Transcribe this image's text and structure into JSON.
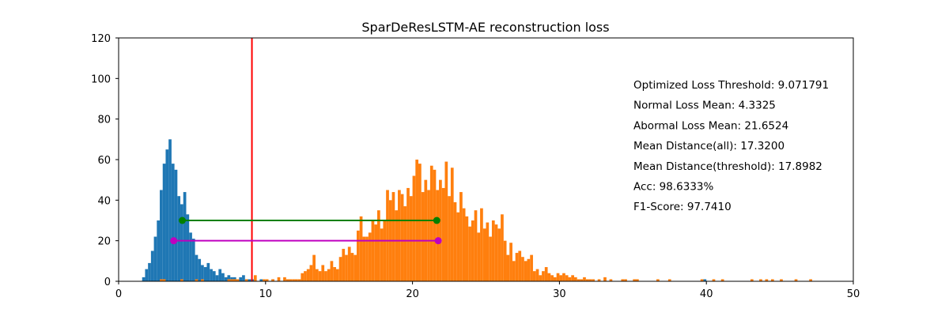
{
  "chart_data": {
    "type": "histogram",
    "title": "SparDeResLSTM-AE reconstruction loss",
    "xlabel": "",
    "ylabel": "",
    "xlim": [
      0,
      50
    ],
    "ylim": [
      0,
      120
    ],
    "x_ticks": [
      0,
      10,
      20,
      30,
      40,
      50
    ],
    "y_ticks": [
      0,
      20,
      40,
      60,
      80,
      100,
      120
    ],
    "grid": false,
    "bin_width": 0.2,
    "series": [
      {
        "color": "#1f77b4",
        "bins": [
          [
            1.6,
            2
          ],
          [
            1.8,
            6
          ],
          [
            2.0,
            9
          ],
          [
            2.2,
            15
          ],
          [
            2.4,
            22
          ],
          [
            2.6,
            30
          ],
          [
            2.8,
            45
          ],
          [
            3.0,
            58
          ],
          [
            3.2,
            65
          ],
          [
            3.4,
            70
          ],
          [
            3.6,
            58
          ],
          [
            3.8,
            55
          ],
          [
            4.0,
            42
          ],
          [
            4.2,
            38
          ],
          [
            4.4,
            44
          ],
          [
            4.6,
            33
          ],
          [
            4.8,
            24
          ],
          [
            5.0,
            21
          ],
          [
            5.2,
            13
          ],
          [
            5.4,
            11
          ],
          [
            5.6,
            8
          ],
          [
            5.8,
            7
          ],
          [
            6.0,
            9
          ],
          [
            6.2,
            6
          ],
          [
            6.4,
            5
          ],
          [
            6.6,
            3
          ],
          [
            6.8,
            6
          ],
          [
            7.0,
            4
          ],
          [
            7.2,
            2
          ],
          [
            7.4,
            3
          ],
          [
            7.6,
            2
          ],
          [
            7.8,
            2
          ],
          [
            8.0,
            1
          ],
          [
            8.2,
            2
          ],
          [
            8.4,
            3
          ],
          [
            8.6,
            1
          ],
          [
            8.8,
            1
          ],
          [
            9.0,
            1
          ],
          [
            9.6,
            1
          ],
          [
            10.4,
            1
          ],
          [
            39.8,
            1
          ]
        ]
      },
      {
        "color": "#ff7f0e",
        "bins": [
          [
            2.8,
            1
          ],
          [
            3.0,
            1
          ],
          [
            4.2,
            1
          ],
          [
            5.2,
            1
          ],
          [
            5.6,
            1
          ],
          [
            7.4,
            1
          ],
          [
            7.6,
            1
          ],
          [
            7.8,
            1
          ],
          [
            8.0,
            1
          ],
          [
            8.6,
            1
          ],
          [
            9.2,
            3
          ],
          [
            9.8,
            1
          ],
          [
            10.0,
            1
          ],
          [
            10.4,
            1
          ],
          [
            10.8,
            2
          ],
          [
            11.2,
            2
          ],
          [
            11.4,
            1
          ],
          [
            11.6,
            1
          ],
          [
            11.8,
            1
          ],
          [
            12.0,
            1
          ],
          [
            12.2,
            1
          ],
          [
            12.4,
            4
          ],
          [
            12.6,
            5
          ],
          [
            12.8,
            6
          ],
          [
            13.0,
            8
          ],
          [
            13.2,
            13
          ],
          [
            13.4,
            6
          ],
          [
            13.6,
            5
          ],
          [
            13.8,
            8
          ],
          [
            14.0,
            5
          ],
          [
            14.2,
            6
          ],
          [
            14.4,
            10
          ],
          [
            14.6,
            7
          ],
          [
            14.8,
            6
          ],
          [
            15.0,
            12
          ],
          [
            15.2,
            16
          ],
          [
            15.4,
            13
          ],
          [
            15.6,
            17
          ],
          [
            15.8,
            14
          ],
          [
            16.0,
            13
          ],
          [
            16.2,
            25
          ],
          [
            16.4,
            32
          ],
          [
            16.6,
            22
          ],
          [
            16.8,
            22
          ],
          [
            17.0,
            24
          ],
          [
            17.2,
            30
          ],
          [
            17.4,
            28
          ],
          [
            17.6,
            35
          ],
          [
            17.8,
            26
          ],
          [
            18.0,
            30
          ],
          [
            18.2,
            45
          ],
          [
            18.4,
            40
          ],
          [
            18.6,
            44
          ],
          [
            18.8,
            35
          ],
          [
            19.0,
            45
          ],
          [
            19.2,
            43
          ],
          [
            19.4,
            37
          ],
          [
            19.6,
            46
          ],
          [
            19.8,
            42
          ],
          [
            20.0,
            52
          ],
          [
            20.2,
            60
          ],
          [
            20.4,
            58
          ],
          [
            20.6,
            44
          ],
          [
            20.8,
            50
          ],
          [
            21.0,
            45
          ],
          [
            21.2,
            57
          ],
          [
            21.4,
            55
          ],
          [
            21.6,
            45
          ],
          [
            21.8,
            50
          ],
          [
            22.0,
            46
          ],
          [
            22.2,
            59
          ],
          [
            22.4,
            42
          ],
          [
            22.6,
            56
          ],
          [
            22.8,
            39
          ],
          [
            23.0,
            34
          ],
          [
            23.2,
            44
          ],
          [
            23.4,
            36
          ],
          [
            23.6,
            32
          ],
          [
            23.8,
            27
          ],
          [
            24.0,
            30
          ],
          [
            24.2,
            35
          ],
          [
            24.4,
            24
          ],
          [
            24.6,
            36
          ],
          [
            24.8,
            26
          ],
          [
            25.0,
            29
          ],
          [
            25.2,
            22
          ],
          [
            25.4,
            30
          ],
          [
            25.6,
            28
          ],
          [
            25.8,
            26
          ],
          [
            26.0,
            33
          ],
          [
            26.2,
            20
          ],
          [
            26.4,
            13
          ],
          [
            26.6,
            19
          ],
          [
            26.8,
            10
          ],
          [
            27.0,
            14
          ],
          [
            27.2,
            15
          ],
          [
            27.4,
            12
          ],
          [
            27.6,
            10
          ],
          [
            27.8,
            11
          ],
          [
            28.0,
            13
          ],
          [
            28.2,
            5
          ],
          [
            28.4,
            6
          ],
          [
            28.6,
            3
          ],
          [
            28.8,
            5
          ],
          [
            29.0,
            7
          ],
          [
            29.2,
            4
          ],
          [
            29.4,
            3
          ],
          [
            29.6,
            2
          ],
          [
            29.8,
            4
          ],
          [
            30.0,
            3
          ],
          [
            30.2,
            4
          ],
          [
            30.4,
            3
          ],
          [
            30.6,
            2
          ],
          [
            30.8,
            3
          ],
          [
            31.0,
            2
          ],
          [
            31.2,
            1
          ],
          [
            31.4,
            1
          ],
          [
            31.6,
            2
          ],
          [
            31.8,
            1
          ],
          [
            32.0,
            1
          ],
          [
            32.2,
            1
          ],
          [
            32.6,
            1
          ],
          [
            33.0,
            2
          ],
          [
            33.4,
            1
          ],
          [
            34.2,
            1
          ],
          [
            34.4,
            1
          ],
          [
            35.0,
            1
          ],
          [
            35.2,
            1
          ],
          [
            36.6,
            1
          ],
          [
            37.4,
            1
          ],
          [
            39.6,
            1
          ],
          [
            40.4,
            1
          ],
          [
            41.0,
            1
          ],
          [
            43.0,
            1
          ],
          [
            43.6,
            1
          ],
          [
            44.0,
            1
          ],
          [
            44.4,
            1
          ],
          [
            45.0,
            1
          ],
          [
            46.0,
            1
          ],
          [
            47.0,
            1
          ]
        ]
      }
    ],
    "threshold_line": {
      "x": 9.071791,
      "color": "#ff0000"
    },
    "distance_markers": [
      {
        "x1": 4.3325,
        "x2": 21.6524,
        "y": 30,
        "color": "#008000"
      },
      {
        "x1": 3.75,
        "x2": 21.75,
        "y": 20,
        "color": "#bf00bf"
      }
    ],
    "annotations": [
      "Optimized Loss Threshold: 9.071791",
      "Normal Loss Mean: 4.3325",
      "Abormal Loss Mean: 21.6524",
      "Mean Distance(all): 17.3200",
      "Mean Distance(threshold): 17.8982",
      "Acc: 98.6333%",
      "F1-Score: 97.7410"
    ]
  }
}
